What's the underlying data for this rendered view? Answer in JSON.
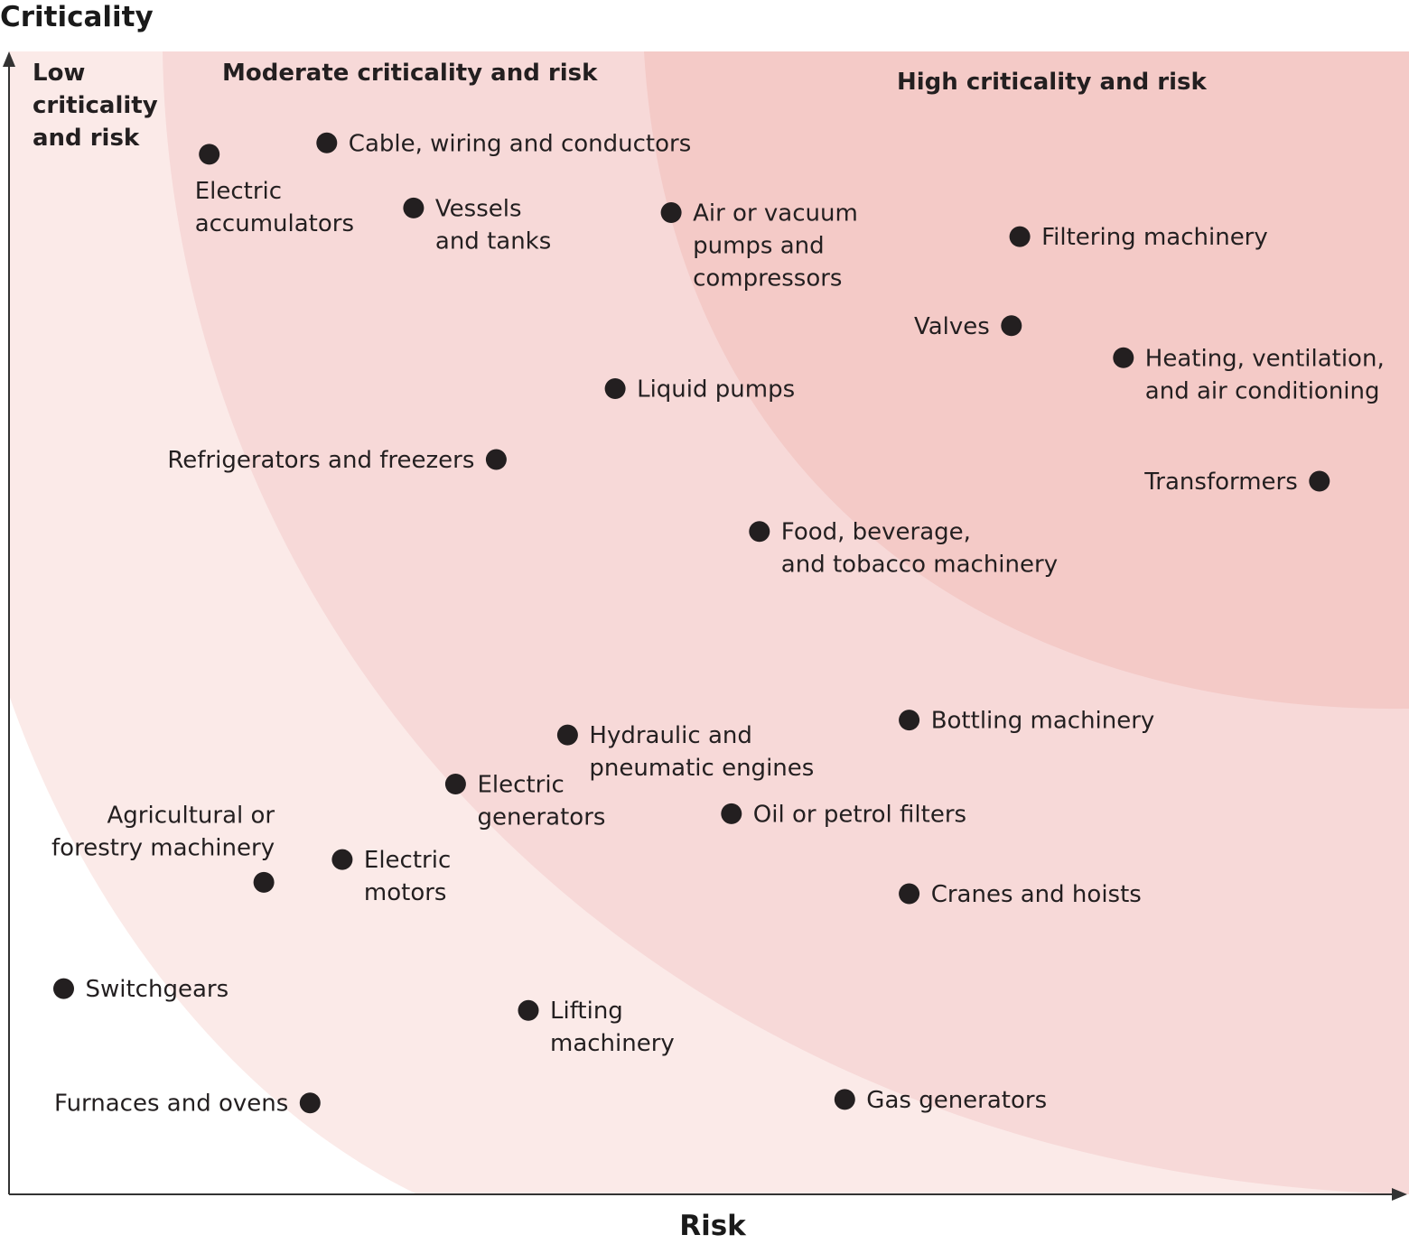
{
  "chart_data": {
    "type": "scatter",
    "title": "",
    "xlabel": "Risk",
    "ylabel": "Criticality",
    "grid": false,
    "legend": "none",
    "xlim": [
      0,
      100
    ],
    "ylim": [
      0,
      100
    ],
    "colors": {
      "zone_low": "#fbeae8",
      "zone_moderate": "#f7d9d8",
      "zone_high": "#f4cac7",
      "points": "#231f20",
      "axis": "#333333"
    },
    "zones": [
      {
        "key": "low",
        "lines": [
          "Low",
          "criticality",
          "and risk"
        ]
      },
      {
        "key": "moderate",
        "lines": [
          "Moderate criticality and risk"
        ]
      },
      {
        "key": "high",
        "lines": [
          "High criticality and risk"
        ]
      }
    ],
    "points": [
      {
        "label": [
          "Electric",
          "accumulators"
        ],
        "x": 14.3,
        "y": 91.0,
        "pos": "below"
      },
      {
        "label": [
          "Cable, wiring and conductors"
        ],
        "x": 22.7,
        "y": 92.0,
        "pos": "right"
      },
      {
        "label": [
          "Vessels",
          "and tanks"
        ],
        "x": 28.9,
        "y": 86.3,
        "pos": "right"
      },
      {
        "label": [
          "Air or vacuum",
          "pumps and",
          "compressors"
        ],
        "x": 47.3,
        "y": 85.9,
        "pos": "right"
      },
      {
        "label": [
          "Filtering machinery"
        ],
        "x": 72.2,
        "y": 83.8,
        "pos": "right"
      },
      {
        "label": [
          "Valves"
        ],
        "x": 71.6,
        "y": 76.0,
        "pos": "left"
      },
      {
        "label": [
          "Heating, ventilation,",
          "and air conditioning"
        ],
        "x": 79.6,
        "y": 73.2,
        "pos": "right"
      },
      {
        "label": [
          "Liquid pumps"
        ],
        "x": 43.3,
        "y": 70.5,
        "pos": "right"
      },
      {
        "label": [
          "Refrigerators and freezers"
        ],
        "x": 34.8,
        "y": 64.3,
        "pos": "left"
      },
      {
        "label": [
          "Transformers"
        ],
        "x": 93.6,
        "y": 62.4,
        "pos": "left"
      },
      {
        "label": [
          "Food, beverage,",
          "and tobacco machinery"
        ],
        "x": 53.6,
        "y": 58.0,
        "pos": "right"
      },
      {
        "label": [
          "Bottling machinery"
        ],
        "x": 64.3,
        "y": 41.5,
        "pos": "right"
      },
      {
        "label": [
          "Hydraulic and",
          "pneumatic engines"
        ],
        "x": 39.9,
        "y": 40.2,
        "pos": "right"
      },
      {
        "label": [
          "Electric",
          "generators"
        ],
        "x": 31.9,
        "y": 35.9,
        "pos": "right"
      },
      {
        "label": [
          "Oil or petrol filters"
        ],
        "x": 51.6,
        "y": 33.3,
        "pos": "right"
      },
      {
        "label": [
          "Electric",
          "motors"
        ],
        "x": 23.8,
        "y": 29.3,
        "pos": "right"
      },
      {
        "label": [
          "Agricultural or",
          "forestry machinery"
        ],
        "x": 18.2,
        "y": 27.3,
        "pos": "above-left"
      },
      {
        "label": [
          "Cranes and hoists"
        ],
        "x": 64.3,
        "y": 26.3,
        "pos": "right"
      },
      {
        "label": [
          "Switchgears"
        ],
        "x": 3.9,
        "y": 18.0,
        "pos": "right"
      },
      {
        "label": [
          "Lifting",
          "machinery"
        ],
        "x": 37.1,
        "y": 16.1,
        "pos": "right"
      },
      {
        "label": [
          "Gas generators"
        ],
        "x": 59.7,
        "y": 8.3,
        "pos": "right"
      },
      {
        "label": [
          "Furnaces and ovens"
        ],
        "x": 21.5,
        "y": 8.0,
        "pos": "left"
      }
    ]
  }
}
